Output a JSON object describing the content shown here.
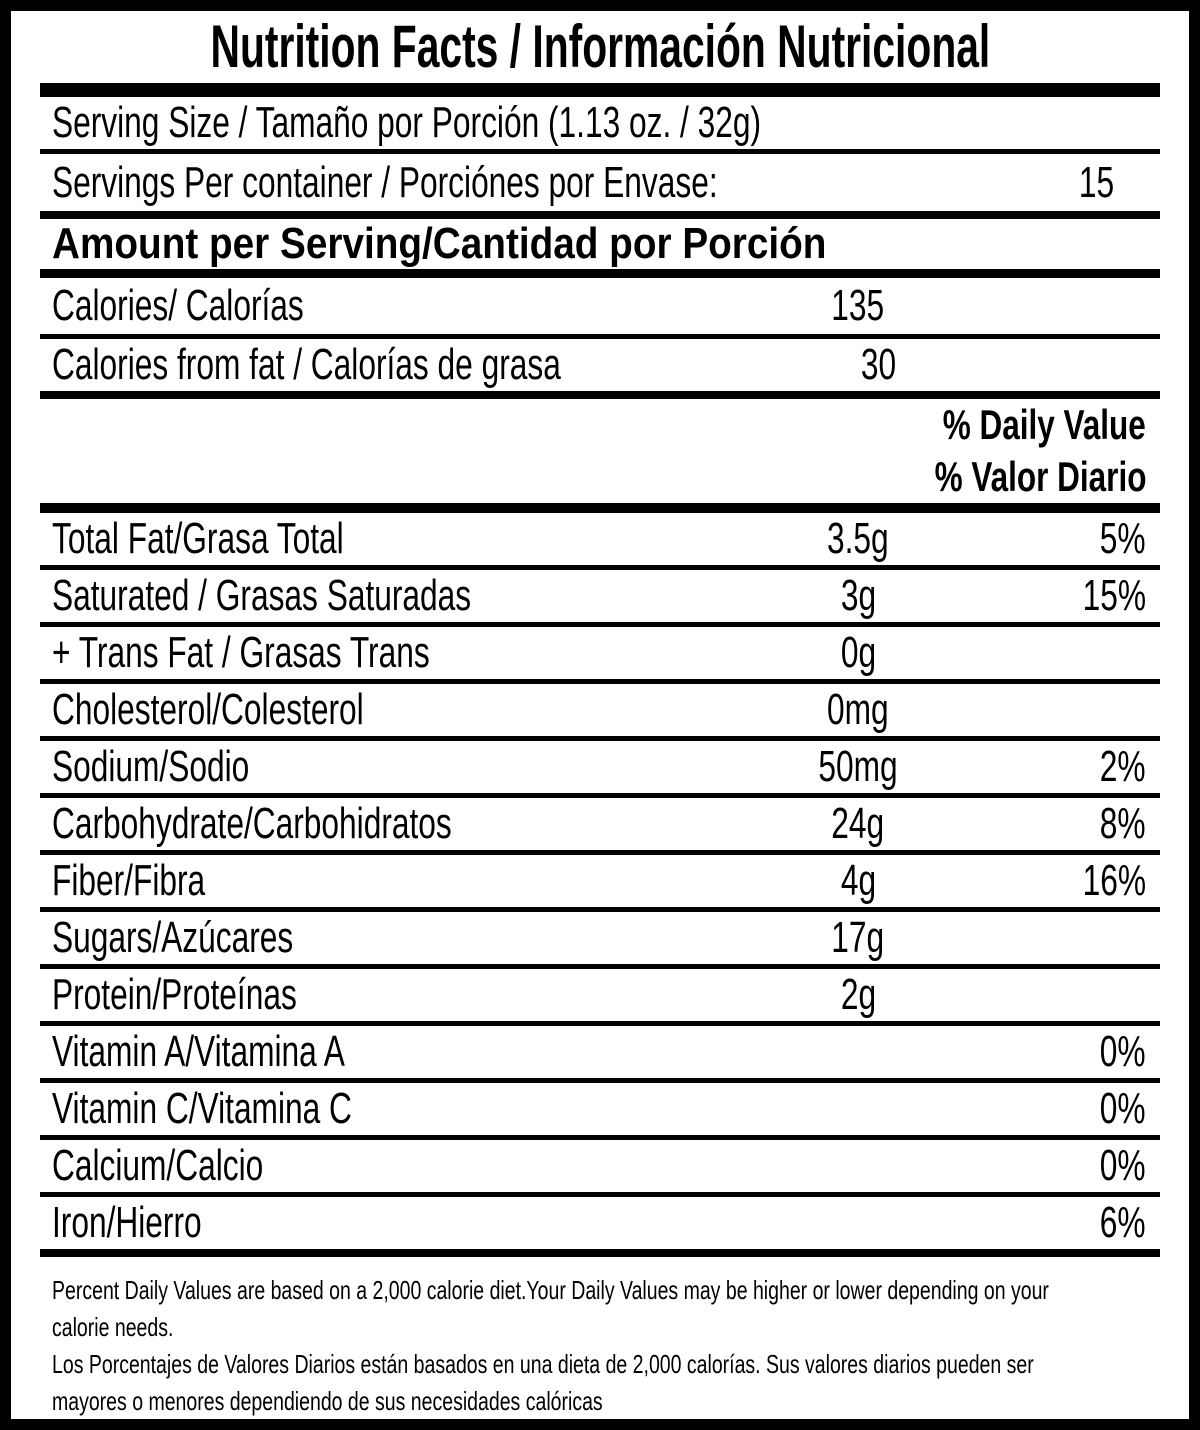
{
  "title": "Nutrition Facts / Información Nutricional",
  "serving": {
    "size": "Serving Size / Tamaño por Porción (1.13 oz. / 32g)",
    "per_container_label": "Servings Per container / Porciónes por Envase:",
    "per_container_value": "15"
  },
  "amount_header": "Amount per Serving/Cantidad por Porción",
  "calories": {
    "label": "Calories/ Calorías",
    "value": "135"
  },
  "calories_from_fat": {
    "label": "Calories from fat / Calorías de grasa",
    "value": "30"
  },
  "daily_value_header": {
    "en": "% Daily Value",
    "es": "% Valor Diario"
  },
  "nutrients": [
    {
      "label": "Total Fat/Grasa Total",
      "amount": "3.5g",
      "dv": "5%"
    },
    {
      "label": "Saturated / Grasas Saturadas",
      "amount": "3g",
      "dv": "15%"
    },
    {
      "label": "+ Trans Fat / Grasas Trans",
      "amount": "0g",
      "dv": ""
    },
    {
      "label": "Cholesterol/Colesterol",
      "amount": "0mg",
      "dv": ""
    },
    {
      "label": "Sodium/Sodio",
      "amount": "50mg",
      "dv": "2%"
    },
    {
      "label": "Carbohydrate/Carbohidratos",
      "amount": "24g",
      "dv": "8%"
    },
    {
      "label": "Fiber/Fibra",
      "amount": "4g",
      "dv": "16%"
    },
    {
      "label": "Sugars/Azúcares",
      "amount": "17g",
      "dv": ""
    },
    {
      "label": "Protein/Proteínas",
      "amount": "2g",
      "dv": ""
    },
    {
      "label": "Vitamin A/Vitamina A",
      "amount": "",
      "dv": "0%"
    },
    {
      "label": "Vitamin C/Vitamina C",
      "amount": "",
      "dv": "0%"
    },
    {
      "label": "Calcium/Calcio",
      "amount": "",
      "dv": "0%"
    },
    {
      "label": "Iron/Hierro",
      "amount": "",
      "dv": "6%"
    }
  ],
  "footnote": {
    "lines": [
      "Percent Daily Values are based on a 2,000 calorie diet.Your Daily Values may be higher or lower depending on your",
      "calorie needs.",
      "Los Porcentajes de Valores Diarios están basados en una dieta de 2,000 calorías. Sus valores diarios pueden ser",
      "mayores o menores dependiendo de sus necesidades calóricas"
    ]
  },
  "colors": {
    "background": "#ffffff",
    "text": "#000000",
    "border": "#000000"
  }
}
